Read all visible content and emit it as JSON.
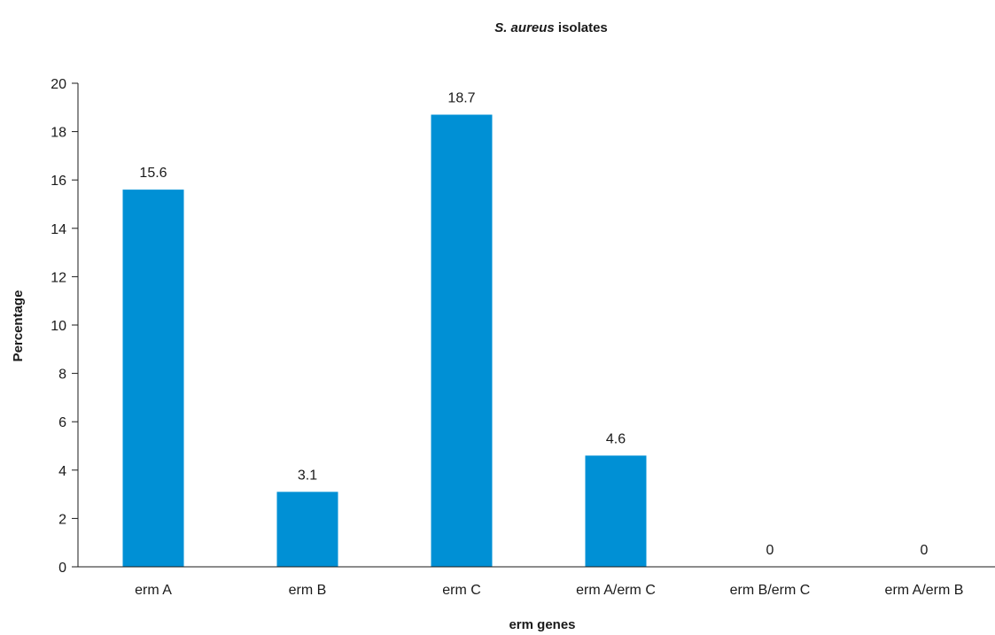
{
  "chart_data": {
    "type": "bar",
    "title_italic": "S. aureus",
    "title_rest": " isolates",
    "xlabel": "erm genes",
    "ylabel": "Percentage",
    "categories": [
      "erm A",
      "erm B",
      "erm C",
      "erm A/erm C",
      "erm B/erm C",
      "erm A/erm B"
    ],
    "values": [
      15.6,
      3.1,
      18.7,
      4.6,
      0,
      0
    ],
    "value_labels": [
      "15.6",
      "3.1",
      "18.7",
      "4.6",
      "0",
      "0"
    ],
    "ylim": [
      0,
      20
    ],
    "yticks": [
      0,
      2,
      4,
      6,
      8,
      10,
      12,
      14,
      16,
      18,
      20
    ],
    "grid": false,
    "bar_color": "#0090d5"
  }
}
